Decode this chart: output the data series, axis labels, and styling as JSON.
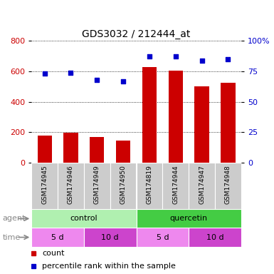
{
  "title": "GDS3032 / 212444_at",
  "samples": [
    "GSM174945",
    "GSM174946",
    "GSM174949",
    "GSM174950",
    "GSM174819",
    "GSM174944",
    "GSM174947",
    "GSM174948"
  ],
  "counts": [
    180,
    195,
    168,
    145,
    630,
    605,
    500,
    525
  ],
  "percentile_ranks": [
    73,
    74,
    68,
    67,
    87,
    87,
    84,
    85
  ],
  "ylim_left": [
    0,
    800
  ],
  "ylim_right": [
    0,
    100
  ],
  "yticks_left": [
    0,
    200,
    400,
    600,
    800
  ],
  "yticks_right": [
    0,
    25,
    50,
    75,
    100
  ],
  "ytick_labels_right": [
    "0",
    "25",
    "50",
    "75",
    "100%"
  ],
  "bar_color": "#cc0000",
  "dot_color": "#0000cc",
  "grid_color": "#000000",
  "agent_label": "agent",
  "time_label": "time",
  "agents": [
    {
      "label": "control",
      "start": 0,
      "end": 4,
      "color": "#b0f0b0"
    },
    {
      "label": "quercetin",
      "start": 4,
      "end": 8,
      "color": "#44cc44"
    }
  ],
  "times": [
    {
      "label": "5 d",
      "start": 0,
      "end": 2,
      "color": "#ee88ee"
    },
    {
      "label": "10 d",
      "start": 2,
      "end": 4,
      "color": "#cc44cc"
    },
    {
      "label": "5 d",
      "start": 4,
      "end": 6,
      "color": "#ee88ee"
    },
    {
      "label": "10 d",
      "start": 6,
      "end": 8,
      "color": "#cc44cc"
    }
  ],
  "legend_count_label": "count",
  "legend_pct_label": "percentile rank within the sample",
  "title_fontsize": 10,
  "axis_tick_color_left": "#cc0000",
  "axis_tick_color_right": "#0000cc",
  "sample_bg_color": "#cccccc",
  "sample_divider_color": "#ffffff"
}
